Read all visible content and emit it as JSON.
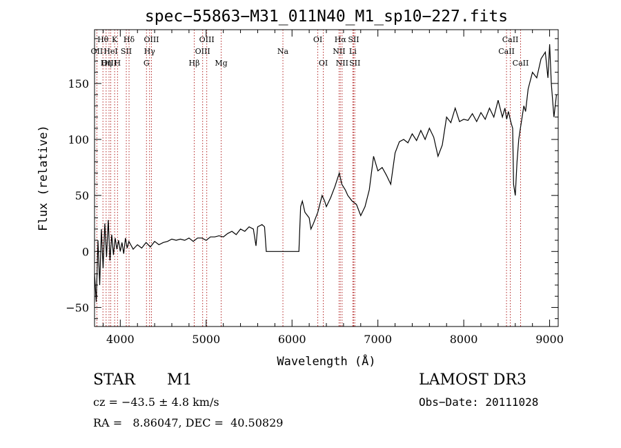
{
  "chart_data": {
    "type": "line",
    "title": "spec−55863−M31_011N40_M1_sp10−227.fits",
    "xlabel": "Wavelength (Å)",
    "ylabel": "Flux (relative)",
    "xlim": [
      3700,
      9100
    ],
    "ylim": [
      -67,
      198
    ],
    "xticks": [
      4000,
      5000,
      6000,
      7000,
      8000,
      9000
    ],
    "xtick_labels": [
      "4000",
      "5000",
      "6000",
      "7000",
      "8000",
      "9000"
    ],
    "yticks": [
      -50,
      0,
      50,
      100,
      150
    ],
    "ytick_labels": [
      "−50",
      "0",
      "50",
      "100",
      "150"
    ],
    "grid": false,
    "line_color": "#000000",
    "marker_color": "#b22222",
    "series": [
      {
        "points": [
          [
            3700,
            -20
          ],
          [
            3720,
            -45
          ],
          [
            3740,
            10
          ],
          [
            3760,
            -30
          ],
          [
            3780,
            20
          ],
          [
            3800,
            -15
          ],
          [
            3820,
            25
          ],
          [
            3840,
            -5
          ],
          [
            3860,
            28
          ],
          [
            3880,
            -8
          ],
          [
            3900,
            15
          ],
          [
            3920,
            -3
          ],
          [
            3940,
            12
          ],
          [
            3960,
            2
          ],
          [
            3980,
            10
          ],
          [
            4000,
            0
          ],
          [
            4020,
            8
          ],
          [
            4040,
            -2
          ],
          [
            4060,
            12
          ],
          [
            4080,
            3
          ],
          [
            4100,
            9
          ],
          [
            4150,
            2
          ],
          [
            4200,
            6
          ],
          [
            4250,
            3
          ],
          [
            4300,
            8
          ],
          [
            4350,
            4
          ],
          [
            4400,
            9
          ],
          [
            4450,
            6
          ],
          [
            4500,
            8
          ],
          [
            4550,
            9
          ],
          [
            4600,
            11
          ],
          [
            4650,
            10
          ],
          [
            4700,
            11
          ],
          [
            4750,
            10
          ],
          [
            4800,
            12
          ],
          [
            4850,
            9
          ],
          [
            4900,
            12
          ],
          [
            4950,
            12
          ],
          [
            5000,
            10
          ],
          [
            5050,
            13
          ],
          [
            5100,
            13
          ],
          [
            5150,
            14
          ],
          [
            5200,
            13
          ],
          [
            5250,
            16
          ],
          [
            5300,
            18
          ],
          [
            5350,
            15
          ],
          [
            5400,
            20
          ],
          [
            5450,
            18
          ],
          [
            5500,
            22
          ],
          [
            5550,
            20
          ],
          [
            5580,
            5
          ],
          [
            5600,
            22
          ],
          [
            5650,
            24
          ],
          [
            5680,
            22
          ],
          [
            5700,
            0
          ],
          [
            6080,
            0
          ],
          [
            6100,
            40
          ],
          [
            6120,
            45
          ],
          [
            6150,
            35
          ],
          [
            6200,
            30
          ],
          [
            6220,
            20
          ],
          [
            6250,
            25
          ],
          [
            6300,
            35
          ],
          [
            6350,
            50
          ],
          [
            6380,
            45
          ],
          [
            6400,
            40
          ],
          [
            6450,
            48
          ],
          [
            6500,
            58
          ],
          [
            6550,
            70
          ],
          [
            6580,
            60
          ],
          [
            6620,
            55
          ],
          [
            6650,
            50
          ],
          [
            6700,
            45
          ],
          [
            6750,
            42
          ],
          [
            6800,
            32
          ],
          [
            6850,
            40
          ],
          [
            6900,
            55
          ],
          [
            6950,
            85
          ],
          [
            7000,
            72
          ],
          [
            7050,
            75
          ],
          [
            7100,
            68
          ],
          [
            7150,
            60
          ],
          [
            7200,
            88
          ],
          [
            7250,
            98
          ],
          [
            7300,
            100
          ],
          [
            7350,
            97
          ],
          [
            7400,
            105
          ],
          [
            7450,
            99
          ],
          [
            7500,
            108
          ],
          [
            7550,
            100
          ],
          [
            7600,
            110
          ],
          [
            7650,
            102
          ],
          [
            7700,
            85
          ],
          [
            7750,
            95
          ],
          [
            7800,
            120
          ],
          [
            7850,
            115
          ],
          [
            7900,
            128
          ],
          [
            7950,
            116
          ],
          [
            8000,
            118
          ],
          [
            8050,
            117
          ],
          [
            8100,
            123
          ],
          [
            8150,
            116
          ],
          [
            8200,
            124
          ],
          [
            8250,
            118
          ],
          [
            8300,
            128
          ],
          [
            8350,
            120
          ],
          [
            8400,
            135
          ],
          [
            8450,
            120
          ],
          [
            8480,
            128
          ],
          [
            8500,
            118
          ],
          [
            8520,
            125
          ],
          [
            8550,
            115
          ],
          [
            8570,
            110
          ],
          [
            8580,
            60
          ],
          [
            8600,
            50
          ],
          [
            8620,
            80
          ],
          [
            8640,
            100
          ],
          [
            8660,
            110
          ],
          [
            8680,
            120
          ],
          [
            8700,
            130
          ],
          [
            8720,
            125
          ],
          [
            8750,
            145
          ],
          [
            8800,
            160
          ],
          [
            8850,
            155
          ],
          [
            8900,
            172
          ],
          [
            8950,
            178
          ],
          [
            8980,
            155
          ],
          [
            9000,
            185
          ],
          [
            9020,
            150
          ],
          [
            9050,
            120
          ],
          [
            9080,
            140
          ]
        ]
      }
    ],
    "lines": [
      {
        "label": "Hθ",
        "x": 3798,
        "row": 0
      },
      {
        "label": "OII",
        "x": 3727,
        "row": 1
      },
      {
        "label": "OIII",
        "x": 3869,
        "row": 2
      },
      {
        "label": "K",
        "x": 3934,
        "row": 0
      },
      {
        "label": "HeI",
        "x": 3889,
        "row": 1
      },
      {
        "label": "Hη",
        "x": 3835,
        "row": 2
      },
      {
        "label": "Hδ",
        "x": 4102,
        "row": 0
      },
      {
        "label": "SII",
        "x": 4070,
        "row": 1
      },
      {
        "label": "H",
        "x": 3968,
        "row": 2
      },
      {
        "label": "OIII",
        "x": 4363,
        "row": 0
      },
      {
        "label": "Hγ",
        "x": 4341,
        "row": 1
      },
      {
        "label": "G",
        "x": 4305,
        "row": 2
      },
      {
        "label": "OIII",
        "x": 5007,
        "row": 0
      },
      {
        "label": "OIII",
        "x": 4959,
        "row": 1
      },
      {
        "label": "Hβ",
        "x": 4861,
        "row": 2
      },
      {
        "label": "Mg",
        "x": 5175,
        "row": 2
      },
      {
        "label": "Na",
        "x": 5894,
        "row": 1
      },
      {
        "label": "OI",
        "x": 6300,
        "row": 0
      },
      {
        "label": "OI",
        "x": 6364,
        "row": 2
      },
      {
        "label": "Hα",
        "x": 6563,
        "row": 0
      },
      {
        "label": "NII",
        "x": 6548,
        "row": 1
      },
      {
        "label": "NII",
        "x": 6583,
        "row": 2
      },
      {
        "label": "SII",
        "x": 6717,
        "row": 0
      },
      {
        "label": "Li",
        "x": 6708,
        "row": 1
      },
      {
        "label": "SII",
        "x": 6731,
        "row": 2
      },
      {
        "label": "CaII",
        "x": 8542,
        "row": 0
      },
      {
        "label": "CaII",
        "x": 8498,
        "row": 1
      },
      {
        "label": "CaII",
        "x": 8662,
        "row": 2
      }
    ]
  },
  "info": {
    "object_class": "STAR",
    "subclass": "M1",
    "survey": "LAMOST DR3",
    "velocity": "cz = −43.5 ± 4.8 km/s",
    "obs_date": "Obs−Date: 20111028",
    "coords": "RA =   8.86047, DEC =  40.50829"
  }
}
